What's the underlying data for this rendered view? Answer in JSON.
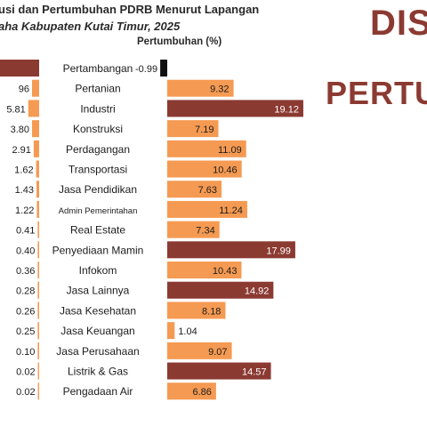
{
  "header": {
    "title_line1": "usi dan Pertumbuhan PDRB Menurut Lapangan",
    "title_line2": "aha Kabupaten Kutai Timur, 2025",
    "growth_label": "Pertumbuhan (%)",
    "banner1": "DIS",
    "banner2": "PERTU"
  },
  "chart_data": {
    "type": "bar",
    "categories": [
      "Pertambangan",
      "Pertanian",
      "Industri",
      "Konstruksi",
      "Perdagangan",
      "Transportasi",
      "Jasa Pendidikan",
      "Admin Pemerintahan",
      "Real Estate",
      "Penyediaan Mamin",
      "Infokom",
      "Jasa Lainnya",
      "Jasa Kesehatan",
      "Jasa Keuangan",
      "Jasa Perusahaan",
      "Listrik & Gas",
      "Pengadaan Air"
    ],
    "series": [
      {
        "name": "",
        "values": [
          null,
          null,
          5.81,
          3.8,
          2.91,
          1.62,
          1.43,
          1.22,
          0.41,
          0.4,
          0.36,
          0.28,
          0.26,
          0.25,
          0.1,
          null,
          null
        ]
      },
      {
        "name": "Pertumbuhan (%)",
        "values": [
          -0.99,
          9.32,
          19.12,
          7.19,
          11.09,
          10.46,
          7.63,
          11.24,
          7.34,
          17.99,
          10.43,
          14.92,
          8.18,
          1.04,
          9.07,
          14.57,
          6.86
        ]
      }
    ],
    "left_labels": [
      "",
      "96",
      "5.81",
      "3.80",
      "2.91",
      "1.62",
      "1.43",
      "1.22",
      "0.41",
      "0.40",
      "0.36",
      "0.28",
      "0.26",
      "0.25",
      "0.10",
      "0.02",
      "0.02"
    ],
    "growth_labels": [
      "-0.99",
      "9.32",
      "19.12",
      "7.19",
      "11.09",
      "10.46",
      "7.63",
      "11.24",
      "7.34",
      "17.99",
      "10.43",
      "14.92",
      "8.18",
      "1.04",
      "9.07",
      "14.57",
      "6.86"
    ],
    "highlight_threshold": 14,
    "colors": {
      "normal": "#f59a52",
      "highlight": "#8b3a32",
      "negative": "#111111",
      "text_light": "#ffffff",
      "text_dark": "#1c1c1c"
    }
  }
}
